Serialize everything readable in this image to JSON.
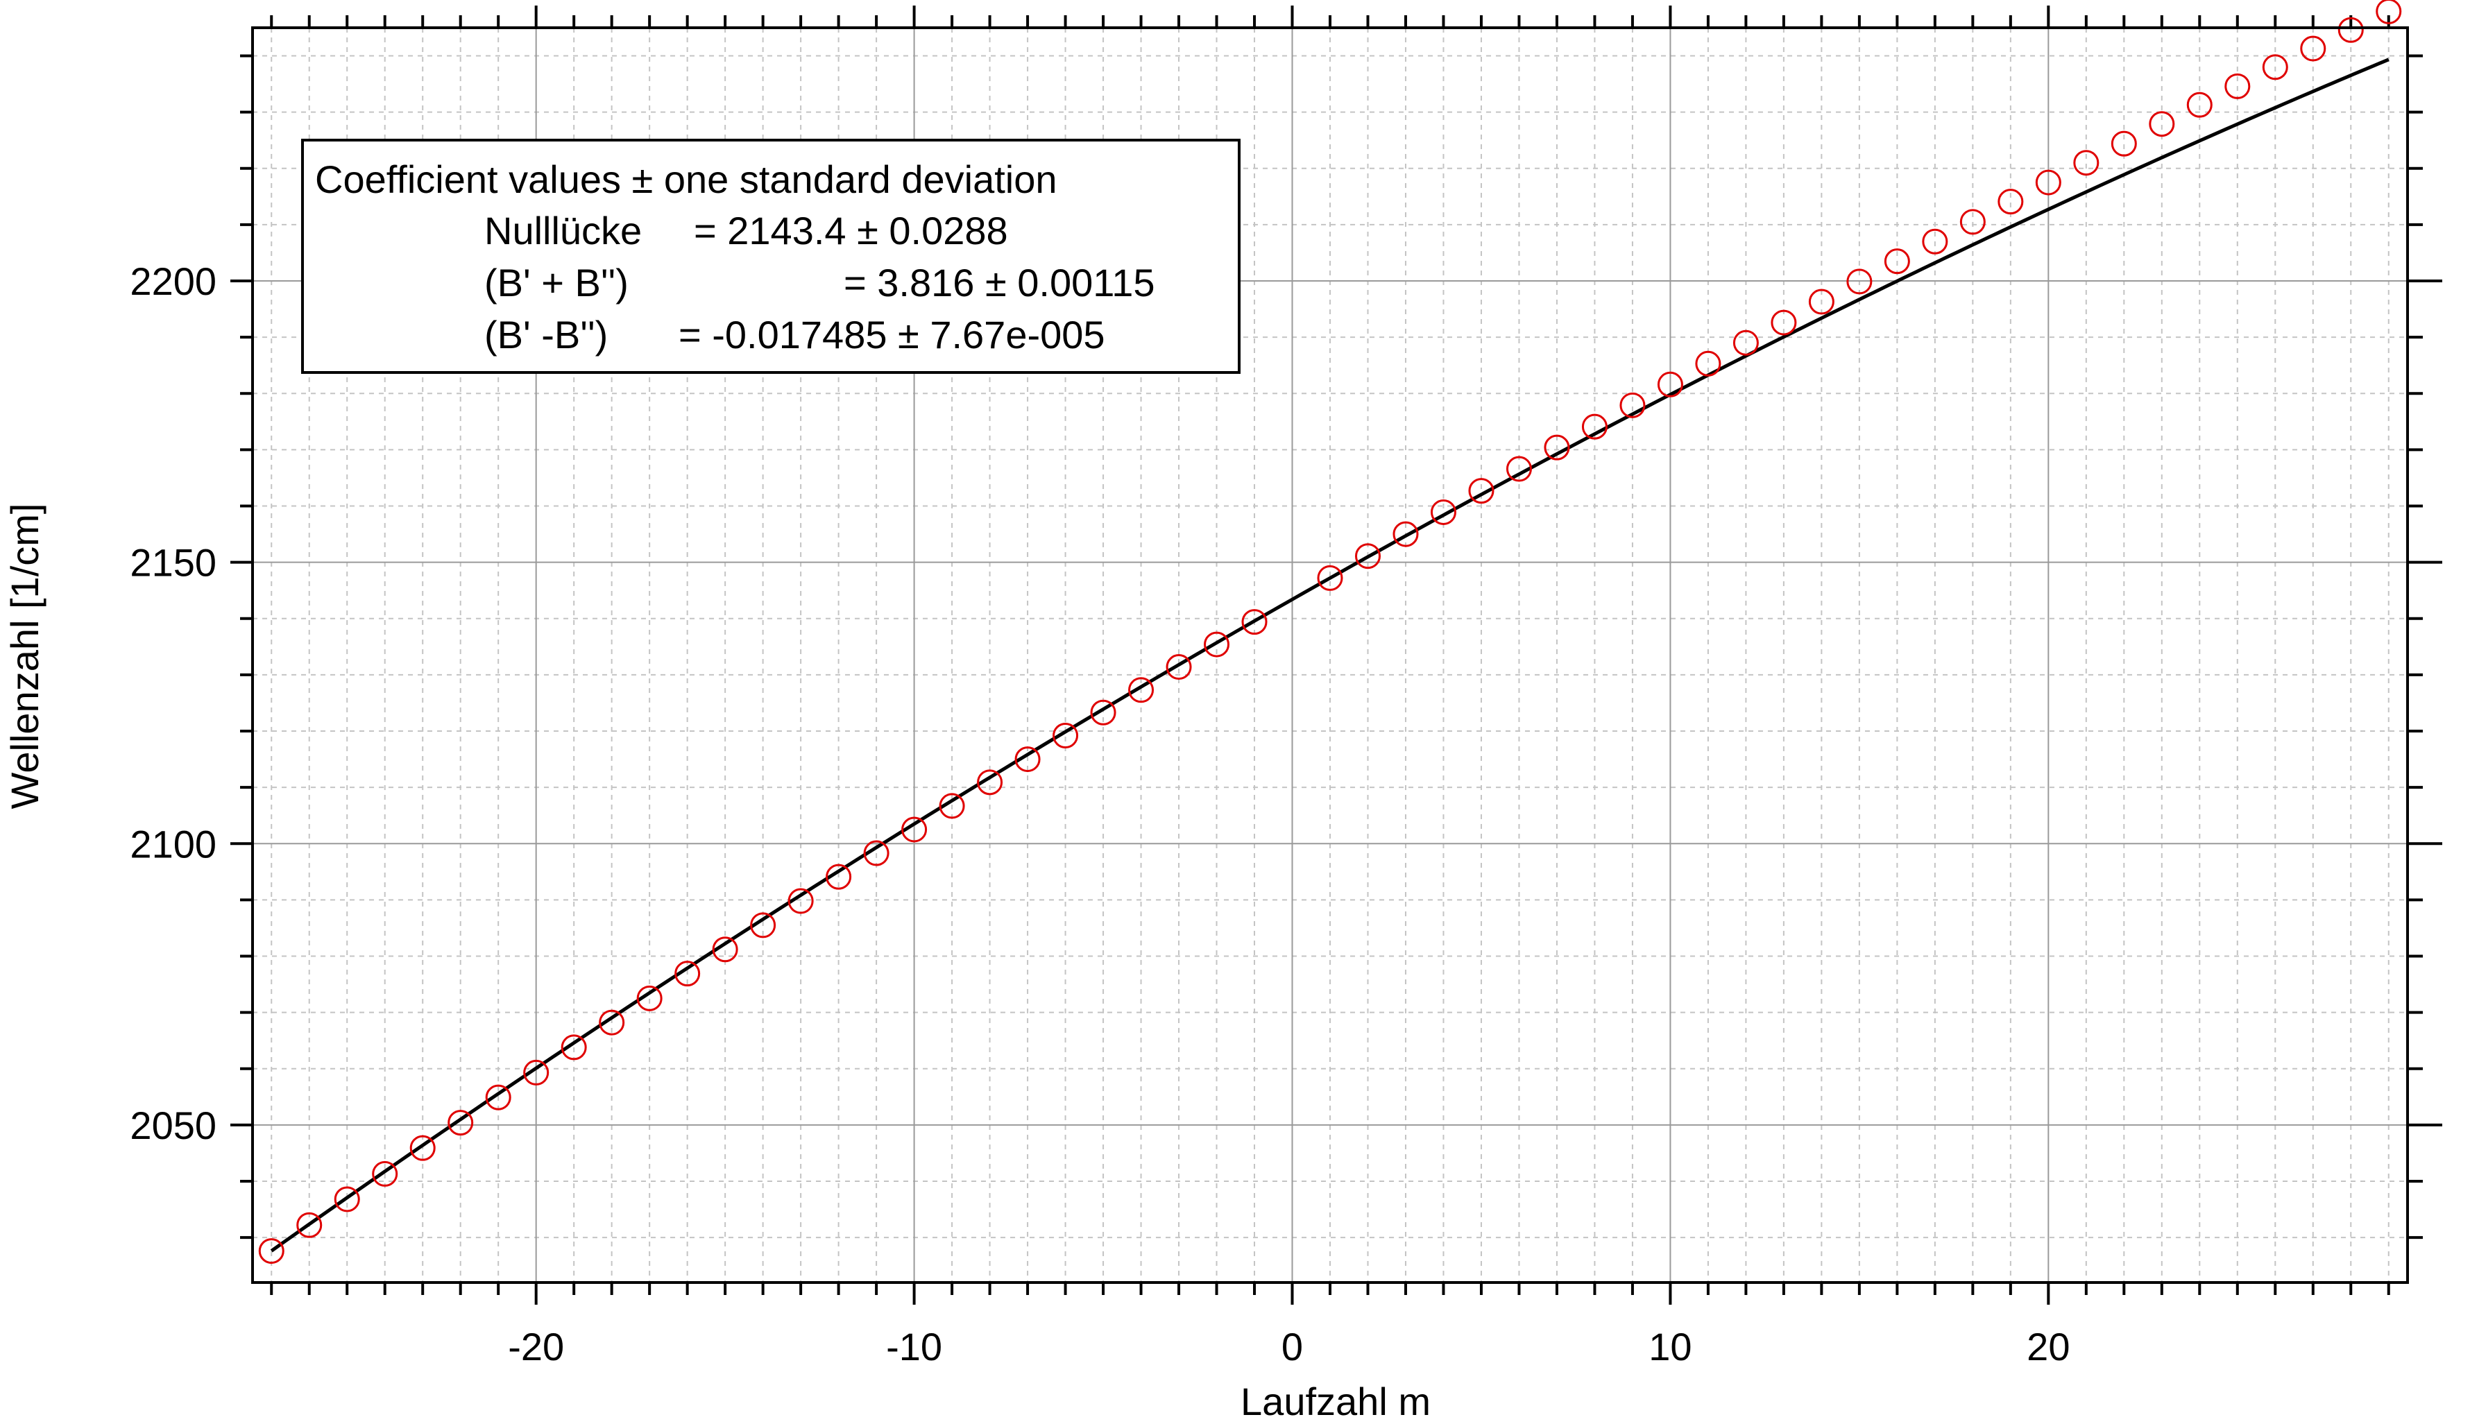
{
  "chart_data": {
    "type": "scatter",
    "title": "",
    "xlabel": "Laufzahl m",
    "ylabel": "Wellenzahl [1/cm]",
    "xlim": [
      -27.5,
      29.5
    ],
    "ylim": [
      2022,
      2245
    ],
    "xticks": [
      -20,
      -10,
      0,
      10,
      20
    ],
    "xtick_labels": [
      "-20",
      "-10",
      "0",
      "10",
      "20"
    ],
    "yticks": [
      2050,
      2100,
      2150,
      2200
    ],
    "ytick_labels": [
      "2050",
      "2100",
      "2150",
      "2200"
    ],
    "x_minor_step": 1,
    "y_minor_step": 10,
    "grid": true,
    "legend": "none",
    "colors": {
      "points": "#e00000",
      "fit": "#000000",
      "grid_major": "#9a9a9a",
      "grid_minor": "#c4c4c4"
    },
    "series": [
      {
        "type": "scatter",
        "marker": "open-circle",
        "x": [
          -27,
          -26,
          -25,
          -24,
          -23,
          -22,
          -21,
          -20,
          -19,
          -18,
          -17,
          -16,
          -15,
          -14,
          -13,
          -12,
          -11,
          -10,
          -9,
          -8,
          -7,
          -6,
          -5,
          -4,
          -3,
          -2,
          -1,
          1,
          2,
          3,
          4,
          5,
          6,
          7,
          8,
          9,
          10,
          11,
          12,
          13,
          14,
          15,
          16,
          17,
          18,
          19,
          20,
          21,
          22,
          23,
          24,
          25,
          26,
          27,
          28,
          29
        ],
        "y": [
          2027.6,
          2032.2,
          2036.8,
          2041.3,
          2045.9,
          2050.4,
          2054.9,
          2059.3,
          2063.8,
          2068.2,
          2072.5,
          2076.9,
          2081.2,
          2085.5,
          2089.8,
          2094.1,
          2098.3,
          2102.5,
          2106.7,
          2110.9,
          2115.0,
          2119.2,
          2123.3,
          2127.3,
          2131.4,
          2135.4,
          2139.4,
          2147.2,
          2151.1,
          2155.0,
          2158.9,
          2162.7,
          2166.6,
          2170.4,
          2174.1,
          2177.9,
          2181.6,
          2185.3,
          2189.0,
          2192.6,
          2196.3,
          2199.9,
          2203.5,
          2207.0,
          2210.5,
          2214.1,
          2217.5,
          2221.0,
          2224.4,
          2227.9,
          2231.3,
          2234.6,
          2238.0,
          2241.3,
          2244.6,
          2247.9
        ]
      },
      {
        "type": "line",
        "name": "",
        "model": "quadratic-fit",
        "coefficients": {
          "c0": 2143.4,
          "c1": 3.816,
          "c2": -0.017485
        },
        "x_range": [
          -27,
          29
        ]
      }
    ],
    "annotation": {
      "lines": [
        {
          "label": "Coefficient values ± one standard deviation",
          "value": ""
        },
        {
          "label": "Nulllücke",
          "value": "= 2143.4 ± 0.0288"
        },
        {
          "label": "(B' + B'')",
          "value": "= 3.816 ± 0.00115"
        },
        {
          "label": "(B' -B'')",
          "value": "= -0.017485 ± 7.67e-005"
        }
      ]
    }
  }
}
